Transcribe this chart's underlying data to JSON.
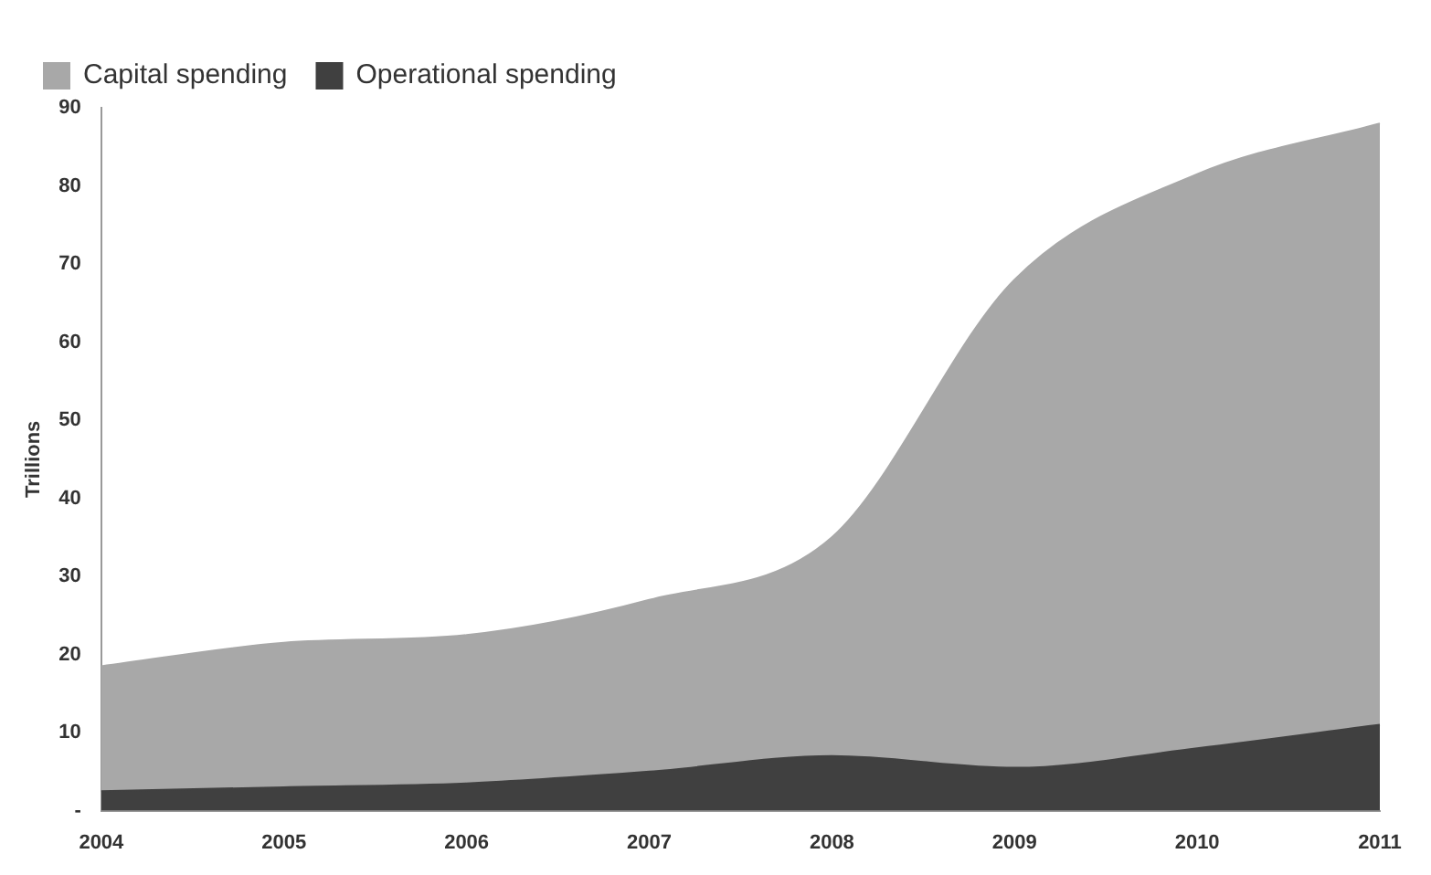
{
  "chart_data": {
    "type": "area",
    "ylabel": "Trillions",
    "stacked": true,
    "categories": [
      "2004",
      "2005",
      "2006",
      "2007",
      "2008",
      "2009",
      "2010",
      "2011"
    ],
    "series": [
      {
        "name": "Operational spending",
        "color": "#404040",
        "values": [
          2.5,
          3,
          3.5,
          5,
          7,
          5.5,
          8,
          11
        ]
      },
      {
        "name": "Capital spending",
        "color": "#a8a8a8",
        "values": [
          16,
          18.5,
          19,
          22,
          28,
          62.5,
          73.5,
          77
        ]
      }
    ],
    "ylim": [
      0,
      90
    ],
    "yticks": [
      {
        "value": 0,
        "label": "-"
      },
      10,
      20,
      30,
      40,
      50,
      60,
      70,
      80,
      90
    ],
    "grid": false,
    "legend": "top left"
  }
}
